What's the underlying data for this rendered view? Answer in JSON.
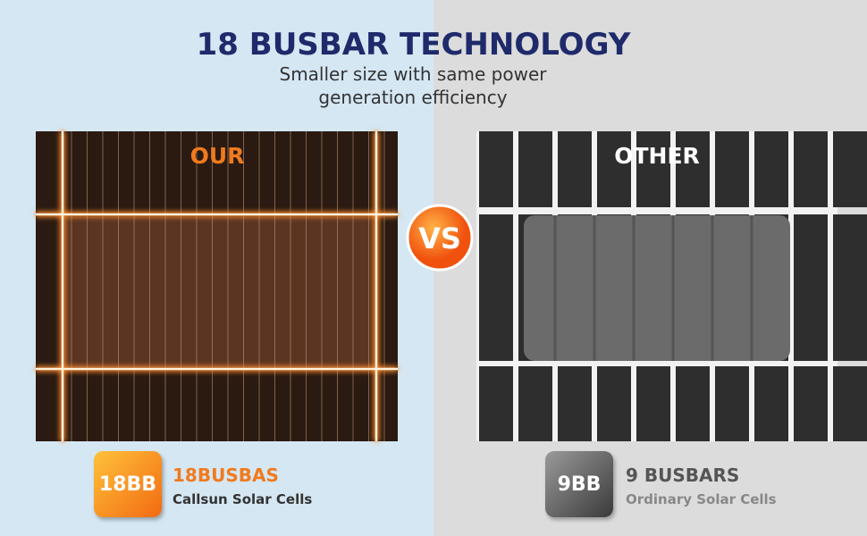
{
  "header": {
    "title": "18 BUSBAR TECHNOLOGY",
    "subtitle": "Smaller size with same power generation efficiency"
  },
  "vs": "VS",
  "left": {
    "label": "OUR",
    "badge": "18BB",
    "name": "18BUSBAS",
    "description": "Callsun Solar Cells"
  },
  "right": {
    "label": "OTHER",
    "badge": "9BB",
    "name": "9 BUSBARS",
    "description": "Ordinary Solar Cells"
  }
}
